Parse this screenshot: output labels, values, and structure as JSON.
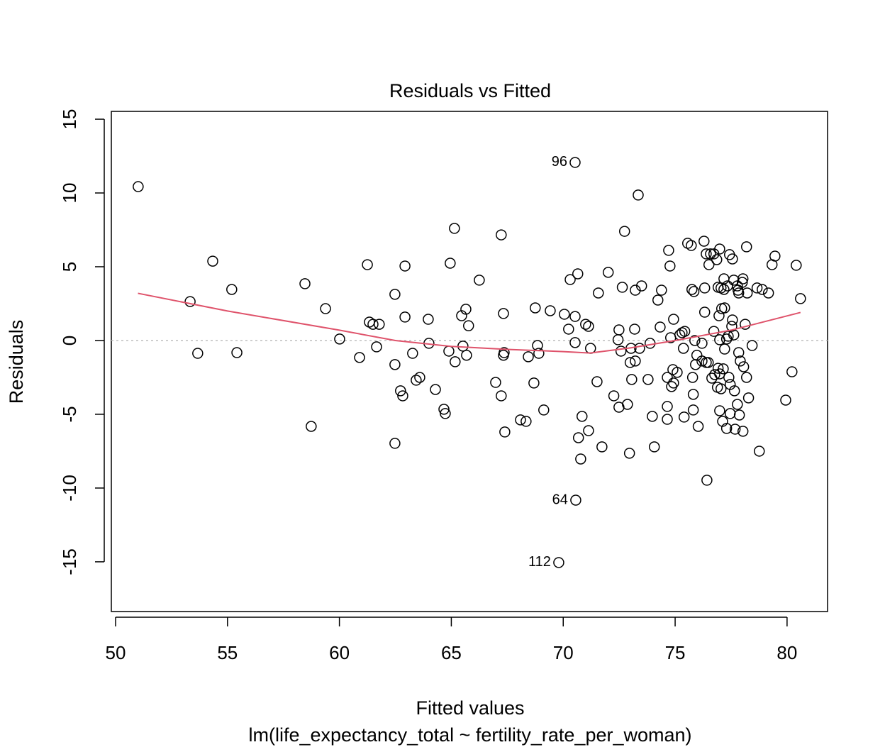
{
  "chart_data": {
    "type": "scatter",
    "title": "Residuals vs Fitted",
    "xlabel": "Fitted values",
    "subtitle": "lm(life_expectancy_total ~ fertility_rate_per_woman)",
    "ylabel": "Residuals",
    "xlim": [
      49.81,
      81.81
    ],
    "ylim": [
      -18.37,
      15.53
    ],
    "xticks": [
      50,
      55,
      60,
      65,
      70,
      75,
      80
    ],
    "yticks": [
      -15,
      -10,
      -5,
      0,
      5,
      10,
      15
    ],
    "color": "#000000",
    "reference_line": {
      "y": 0,
      "color": "#bebebe"
    },
    "x": [
      51.01,
      53.33,
      53.67,
      54.34,
      55.19,
      55.42,
      58.46,
      58.74,
      59.38,
      60.01,
      60.9,
      61.25,
      61.34,
      61.5,
      61.78,
      61.66,
      62.48,
      62.48,
      62.48,
      62.73,
      62.83,
      62.93,
      62.93,
      63.27,
      63.43,
      63.59,
      63.97,
      64.0,
      64.29,
      64.67,
      64.73,
      64.89,
      64.95,
      65.14,
      65.17,
      65.46,
      65.52,
      65.65,
      65.68,
      65.77,
      66.25,
      66.98,
      67.23,
      67.23,
      67.33,
      67.33,
      67.36,
      67.39,
      68.09,
      68.34,
      68.44,
      68.69,
      68.75,
      68.85,
      68.91,
      69.13,
      69.42,
      70.05,
      70.24,
      70.31,
      70.53,
      70.53,
      70.65,
      70.68,
      70.78,
      70.84,
      71.0,
      71.13,
      71.13,
      71.22,
      71.51,
      71.57,
      71.73,
      72.01,
      72.26,
      72.45,
      72.49,
      72.49,
      72.58,
      72.64,
      72.74,
      72.87,
      72.96,
      72.99,
      73.03,
      73.06,
      73.19,
      73.22,
      73.22,
      73.35,
      73.41,
      73.5,
      73.79,
      73.88,
      73.98,
      74.07,
      74.23,
      74.33,
      74.39,
      74.65,
      74.65,
      74.65,
      74.71,
      74.77,
      74.8,
      74.84,
      74.9,
      74.93,
      74.93,
      75.09,
      75.21,
      75.31,
      75.37,
      75.4,
      75.43,
      75.56,
      75.72,
      75.75,
      75.78,
      75.81,
      75.81,
      75.84,
      75.88,
      75.91,
      75.97,
      76.03,
      76.2,
      76.2,
      76.29,
      76.32,
      76.32,
      76.39,
      76.39,
      76.42,
      76.48,
      76.51,
      76.58,
      76.64,
      76.73,
      76.73,
      76.77,
      76.86,
      76.89,
      76.92,
      76.92,
      76.96,
      76.99,
      76.99,
      76.99,
      76.99,
      77.05,
      77.05,
      77.08,
      77.12,
      77.15,
      77.18,
      77.18,
      77.21,
      77.21,
      77.3,
      77.3,
      77.34,
      77.37,
      77.4,
      77.43,
      77.46,
      77.46,
      77.53,
      77.56,
      77.56,
      77.62,
      77.62,
      77.65,
      77.68,
      77.78,
      77.78,
      77.81,
      77.84,
      77.84,
      77.87,
      77.91,
      78.0,
      78.03,
      78.03,
      78.06,
      78.13,
      78.19,
      78.19,
      78.22,
      78.28,
      78.44,
      78.66,
      78.76,
      78.89,
      79.17,
      79.33,
      79.46,
      79.94,
      80.22,
      80.41,
      80.6
    ],
    "values": [
      10.43,
      2.64,
      -0.87,
      5.38,
      3.46,
      -0.82,
      3.85,
      -5.82,
      2.16,
      0.1,
      -1.15,
      5.14,
      1.25,
      1.1,
      1.1,
      -0.43,
      3.13,
      -1.63,
      -6.97,
      -3.41,
      -3.75,
      5.05,
      1.59,
      -0.87,
      -2.69,
      -2.5,
      1.44,
      -0.19,
      -3.32,
      -4.66,
      -4.95,
      -0.72,
      5.24,
      7.6,
      -1.44,
      1.68,
      -0.38,
      2.12,
      -1.0,
      1.0,
      4.09,
      -2.84,
      7.16,
      -3.75,
      1.83,
      -1.0,
      -0.82,
      -6.2,
      -5.38,
      -5.48,
      -1.1,
      -2.88,
      2.21,
      -0.34,
      -0.87,
      -4.71,
      2.02,
      1.78,
      0.77,
      4.13,
      1.63,
      -0.14,
      4.52,
      -6.59,
      -8.03,
      -5.14,
      1.1,
      0.96,
      -6.11,
      -0.53,
      -2.79,
      3.22,
      -7.21,
      4.62,
      -3.75,
      0.05,
      0.72,
      -4.52,
      -0.72,
      3.61,
      7.4,
      -4.33,
      -7.64,
      -1.49,
      -0.53,
      -2.64,
      0.77,
      3.41,
      -1.39,
      9.86,
      -0.53,
      3.7,
      -2.64,
      -0.19,
      -5.14,
      -7.21,
      2.74,
      0.91,
      3.41,
      -2.5,
      -4.47,
      -5.34,
      6.11,
      5.05,
      0.19,
      -3.12,
      -1.97,
      1.44,
      -2.88,
      -2.16,
      0.38,
      0.53,
      -0.53,
      -5.19,
      0.62,
      6.59,
      6.44,
      3.46,
      -2.5,
      -3.65,
      -4.71,
      3.32,
      0.0,
      -1.63,
      -1.0,
      -5.82,
      -0.19,
      -1.39,
      6.73,
      3.56,
      1.92,
      5.87,
      -1.49,
      -9.47,
      -1.49,
      5.14,
      5.87,
      -2.55,
      0.62,
      5.87,
      -2.31,
      5.48,
      -3.17,
      3.61,
      -1.88,
      1.68,
      6.2,
      0.05,
      -2.26,
      -4.76,
      3.56,
      -3.27,
      2.16,
      -5.48,
      -1.92,
      3.46,
      4.18,
      -0.58,
      2.21,
      0.1,
      -5.96,
      3.7,
      0.29,
      -2.5,
      5.82,
      -2.98,
      -4.95,
      0.96,
      5.53,
      1.39,
      4.09,
      0.38,
      -3.41,
      -6.01,
      3.7,
      -4.33,
      3.41,
      -0.82,
      3.22,
      -5.05,
      -1.39,
      3.94,
      -6.15,
      4.18,
      -1.78,
      1.1,
      6.35,
      -2.5,
      3.22,
      -3.89,
      -0.34,
      3.56,
      -7.5,
      3.46,
      3.22,
      5.14,
      5.72,
      -4.04,
      -2.12,
      5.1,
      2.84
    ],
    "labeled_points": [
      {
        "x": 70.53,
        "y": 12.07,
        "label": "96"
      },
      {
        "x": 70.56,
        "y": -10.82,
        "label": "64"
      },
      {
        "x": 69.8,
        "y": -15.05,
        "label": "112"
      }
    ],
    "smooth": {
      "color": "#DF536B",
      "x": [
        51.0,
        55.0,
        60.0,
        62.5,
        65.0,
        67.5,
        70.0,
        71.2,
        73.0,
        75.0,
        77.5,
        80.6
      ],
      "y": [
        3.2,
        2.0,
        0.7,
        0.0,
        -0.4,
        -0.6,
        -0.75,
        -0.85,
        -0.5,
        0.0,
        0.7,
        1.9
      ]
    }
  }
}
